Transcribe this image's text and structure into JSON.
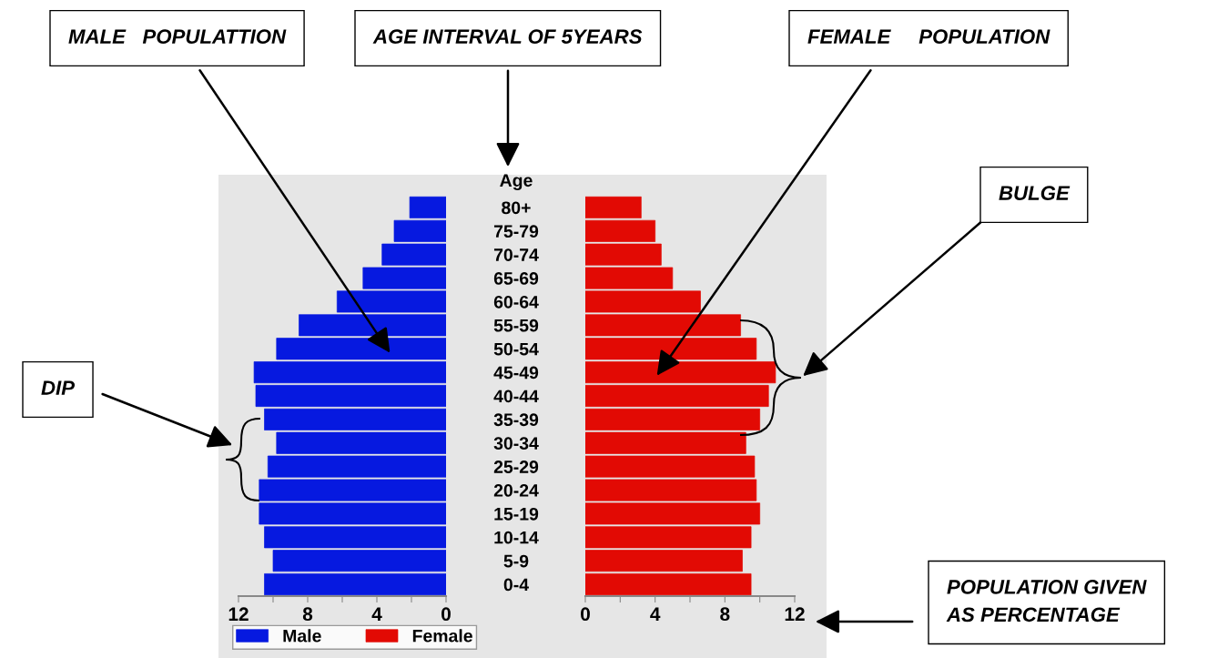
{
  "chart_data": [
    {
      "type": "bar",
      "orientation": "horizontal",
      "categories": [
        "80+",
        "75-79",
        "70-74",
        "65-69",
        "60-64",
        "55-59",
        "50-54",
        "45-49",
        "40-44",
        "35-39",
        "30-34",
        "25-29",
        "20-24",
        "15-19",
        "10-14",
        "5-9",
        "0-4"
      ],
      "series": [
        {
          "name": "Male",
          "color": "#0619e0",
          "values": [
            2.1,
            3.0,
            3.7,
            4.8,
            6.3,
            8.5,
            9.8,
            11.1,
            11.0,
            10.5,
            9.8,
            10.3,
            10.8,
            10.8,
            10.5,
            10.0,
            10.5
          ]
        }
      ],
      "xlim": [
        12,
        0
      ],
      "xticks": [
        12,
        {
          "value": 10,
          "label": null
        },
        8,
        {
          "value": 6,
          "label": null
        },
        4,
        {
          "value": 2,
          "label": null
        },
        0
      ],
      "tick_labels": "x",
      "legend": "bottom",
      "annotations": [
        "MALE   POPULATTION",
        "AGE INTERVAL OF 5YEARS",
        "FEMALE     POPULATION",
        "BULGE",
        "DIP",
        "POPULATION GIVEN\nAS PERCENTAGE"
      ]
    },
    {
      "type": "bar",
      "orientation": "horizontal",
      "categories": [
        "80+",
        "75-79",
        "70-74",
        "65-69",
        "60-64",
        "55-59",
        "50-54",
        "45-49",
        "40-44",
        "35-39",
        "30-34",
        "25-29",
        "20-24",
        "15-19",
        "10-14",
        "5-9",
        "0-4"
      ],
      "series": [
        {
          "name": "Female",
          "color": "#e20a04",
          "values": [
            3.2,
            4.0,
            4.35,
            5.0,
            6.6,
            8.9,
            9.8,
            10.9,
            10.5,
            10.0,
            9.2,
            9.7,
            9.8,
            10.0,
            9.5,
            9.0,
            9.5
          ]
        }
      ],
      "xlim": [
        0,
        12
      ],
      "xticks": [
        0,
        {
          "value": 2,
          "label": null
        },
        4,
        {
          "value": 6,
          "label": null
        },
        8,
        {
          "value": 10,
          "label": null
        },
        12
      ],
      "ylabel": "Age",
      "legend": "bottom"
    }
  ]
}
